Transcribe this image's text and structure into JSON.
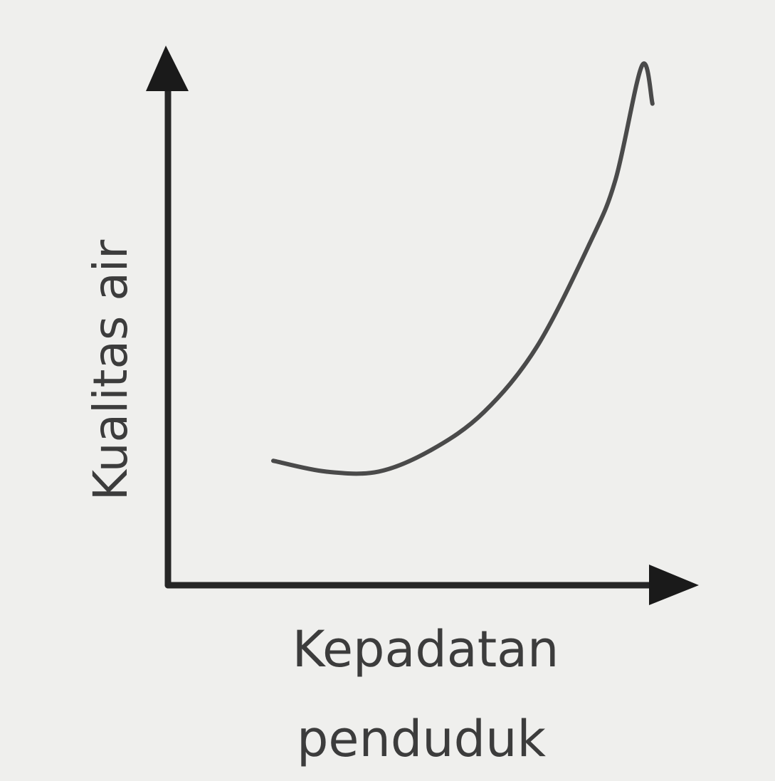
{
  "chart_data": {
    "type": "line",
    "title": "",
    "xlabel_lines": [
      "Kepadatan",
      "penduduk"
    ],
    "ylabel": "Kualitas air",
    "axis_ticks": "none",
    "grid": false,
    "legend": "none",
    "xlim": [
      0,
      10
    ],
    "ylim": [
      0,
      10
    ],
    "series": [
      {
        "x": [
          2.0,
          3.0,
          4.0,
          5.0,
          6.0,
          7.0,
          8.0,
          8.5,
          9.0,
          9.2
        ],
        "y": [
          2.3,
          2.1,
          2.1,
          2.5,
          3.2,
          4.4,
          6.3,
          7.5,
          9.6,
          8.9
        ]
      }
    ],
    "colors": {
      "background": "#efefed",
      "axis": "#262626",
      "line": "#4a4a4a",
      "text": "#3c3c3c"
    }
  }
}
